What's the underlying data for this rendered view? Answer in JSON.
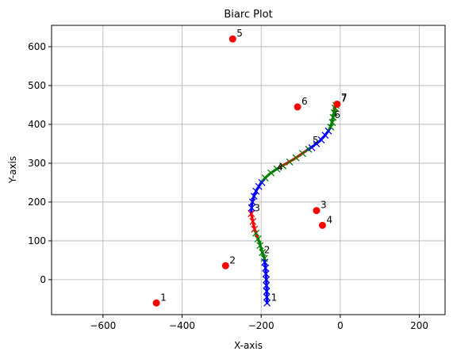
{
  "chart_data": {
    "type": "scatter",
    "title": "Biarc Plot",
    "xlabel": "X-axis",
    "ylabel": "Y-axis",
    "xlim": [
      -730,
      265
    ],
    "ylim": [
      -90,
      655
    ],
    "xticks": [
      -600,
      -400,
      -200,
      0,
      200
    ],
    "yticks": [
      0,
      100,
      200,
      300,
      400,
      500,
      600
    ],
    "grid": true,
    "colors": {
      "red": "#ff0000",
      "green": "#008000",
      "blue": "#0000ff",
      "grid": "#b0b0b0"
    },
    "control_points": [
      {
        "label": "1",
        "x": -465,
        "y": -60
      },
      {
        "label": "2",
        "x": -290,
        "y": 36
      },
      {
        "label": "3",
        "x": -60,
        "y": 178
      },
      {
        "label": "4",
        "x": -45,
        "y": 140
      },
      {
        "label": "5",
        "x": -272,
        "y": 620
      },
      {
        "label": "6",
        "x": -108,
        "y": 445
      },
      {
        "label": "7",
        "x": -8,
        "y": 452
      }
    ],
    "curve_points": [
      {
        "label": "1",
        "x": -185,
        "y": -60
      },
      {
        "label": "2",
        "x": -203,
        "y": 62
      },
      {
        "label": "3",
        "x": -228,
        "y": 170
      },
      {
        "label": "4",
        "x": -170,
        "y": 275
      },
      {
        "label": "5",
        "x": -80,
        "y": 345
      },
      {
        "label": "6",
        "x": -25,
        "y": 410
      },
      {
        "label": "7",
        "x": -8,
        "y": 455
      }
    ],
    "curve_segments": [
      {
        "color": "blue",
        "points": [
          [
            -185,
            -60
          ],
          [
            -186,
            -30
          ],
          [
            -187,
            0
          ],
          [
            -189,
            30
          ],
          [
            -192,
            55
          ]
        ]
      },
      {
        "color": "green",
        "points": [
          [
            -192,
            55
          ],
          [
            -196,
            68
          ],
          [
            -200,
            80
          ],
          [
            -204,
            95
          ],
          [
            -210,
            110
          ]
        ]
      },
      {
        "color": "red",
        "points": [
          [
            -210,
            110
          ],
          [
            -215,
            125
          ],
          [
            -219,
            140
          ],
          [
            -222,
            155
          ],
          [
            -225,
            170
          ]
        ]
      },
      {
        "color": "blue",
        "points": [
          [
            -225,
            170
          ],
          [
            -224,
            190
          ],
          [
            -220,
            210
          ],
          [
            -212,
            230
          ],
          [
            -200,
            250
          ]
        ]
      },
      {
        "color": "green",
        "points": [
          [
            -200,
            250
          ],
          [
            -190,
            262
          ],
          [
            -178,
            273
          ],
          [
            -165,
            282
          ],
          [
            -152,
            290
          ]
        ]
      },
      {
        "color": "red",
        "points": [
          [
            -152,
            290
          ],
          [
            -135,
            300
          ],
          [
            -118,
            310
          ],
          [
            -100,
            322
          ],
          [
            -82,
            335
          ]
        ]
      },
      {
        "color": "blue",
        "points": [
          [
            -82,
            335
          ],
          [
            -66,
            346
          ],
          [
            -52,
            357
          ],
          [
            -40,
            370
          ],
          [
            -30,
            383
          ]
        ]
      },
      {
        "color": "green",
        "points": [
          [
            -30,
            383
          ],
          [
            -24,
            395
          ],
          [
            -20,
            410
          ],
          [
            -17,
            425
          ],
          [
            -14,
            440
          ]
        ]
      },
      {
        "color": "red",
        "points": [
          [
            -14,
            440
          ],
          [
            -12,
            446
          ],
          [
            -10,
            450
          ],
          [
            -9,
            453
          ],
          [
            -8,
            455
          ]
        ]
      }
    ],
    "x_markers": [
      {
        "color": "blue",
        "points": [
          [
            -185,
            -60
          ],
          [
            -186,
            -45
          ],
          [
            -186,
            -30
          ],
          [
            -187,
            -15
          ],
          [
            -187,
            0
          ],
          [
            -188,
            15
          ],
          [
            -189,
            30
          ],
          [
            -191,
            45
          ]
        ]
      },
      {
        "color": "green",
        "points": [
          [
            -192,
            55
          ],
          [
            -197,
            70
          ],
          [
            -203,
            88
          ],
          [
            -208,
            105
          ],
          [
            -213,
            120
          ]
        ]
      },
      {
        "color": "red",
        "points": [
          [
            -217,
            130
          ],
          [
            -221,
            150
          ],
          [
            -225,
            170
          ]
        ]
      },
      {
        "color": "blue",
        "points": [
          [
            -224,
            185
          ],
          [
            -222,
            200
          ],
          [
            -218,
            215
          ],
          [
            -213,
            228
          ],
          [
            -206,
            240
          ],
          [
            -198,
            250
          ]
        ]
      },
      {
        "color": "green",
        "points": [
          [
            -190,
            262
          ],
          [
            -175,
            275
          ],
          [
            -160,
            285
          ],
          [
            -145,
            293
          ],
          [
            -128,
            303
          ],
          [
            -112,
            314
          ],
          [
            -95,
            325
          ],
          [
            -80,
            336
          ]
        ]
      },
      {
        "color": "blue",
        "points": [
          [
            -72,
            340
          ],
          [
            -60,
            350
          ],
          [
            -48,
            360
          ],
          [
            -38,
            372
          ],
          [
            -30,
            383
          ]
        ]
      },
      {
        "color": "green",
        "points": [
          [
            -24,
            393
          ],
          [
            -20,
            405
          ],
          [
            -18,
            418
          ],
          [
            -15,
            430
          ],
          [
            -13,
            442
          ],
          [
            -11,
            449
          ]
        ]
      }
    ]
  }
}
